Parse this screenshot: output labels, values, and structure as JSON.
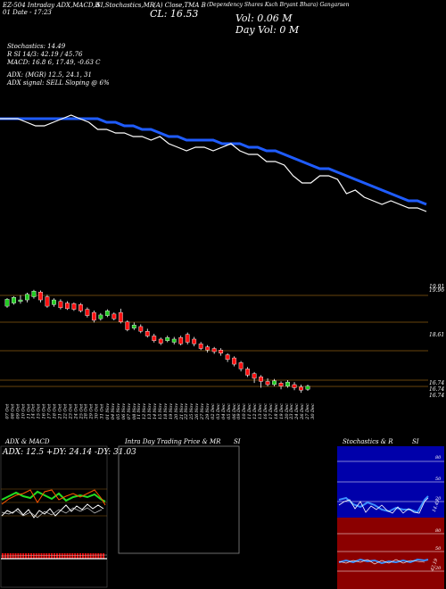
{
  "header": {
    "ticker_line": "EZ-504 Intraday ADX,MACD,B",
    "company": "(Dependency Shares Ksch Bryant Bhara) Gangarsen",
    "sub_left": "01 Date - 17:23",
    "close_label": "CL: 16.53",
    "vol_label": "Vol: 0.06   M",
    "dayvol_label": "Day Vol: 0   M",
    "stoch_title": "SI,Stochastics,MR",
    "close_line_title": "(A) Close,TMA B"
  },
  "stats": {
    "stoch": "Stochastics: 14.49",
    "r": "R                SI 14/3: 42.19 / 45.76",
    "macd": "MACD: 16.8          6, 17.49, -0.63  C",
    "adx": "ADX:                (MGR) 12.5,  24.1,  31",
    "adx_signal": "ADX  signal: SELL  Sloping @ 6%"
  },
  "price_axis": {
    "top_labels": [
      "19.91",
      "19.96"
    ],
    "mid_label": "18.61",
    "low_labels": [
      "16.74",
      "16.74",
      "16.74"
    ]
  },
  "date_labels": [
    "07 Oct",
    "08 Oct",
    "09 Oct",
    "10 Oct",
    "11 Oct",
    "14 Oct",
    "15 Oct",
    "16 Oct",
    "17 Oct",
    "18 Oct",
    "21 Oct",
    "22 Oct",
    "23 Oct",
    "24 Oct",
    "25 Oct",
    "28 Oct",
    "29 Oct",
    "30 Oct",
    "31 Oct",
    "01 Nov",
    "04 Nov",
    "05 Nov",
    "06 Nov",
    "07 Nov",
    "08 Nov",
    "11 Nov",
    "12 Nov",
    "13 Nov",
    "14 Nov",
    "15 Nov",
    "18 Nov",
    "19 Nov",
    "20 Nov",
    "21 Nov",
    "22 Nov",
    "25 Nov",
    "26 Nov",
    "27 Nov",
    "29 Nov",
    "02 Dec",
    "03 Dec",
    "04 Dec",
    "05 Dec",
    "06 Dec",
    "09 Dec",
    "10 Dec",
    "11 Dec",
    "12 Dec",
    "13 Dec",
    "16 Dec",
    "17 Dec",
    "18 Dec",
    "19 Dec",
    "20 Dec",
    "23 Dec",
    "24 Dec",
    "26 Dec",
    "27 Dec",
    "30 Dec"
  ],
  "panels": {
    "adx_title": "ADX  & MACD",
    "adx_values": "ADX: 12.5  +DY: 24.14  -DY: 31.03",
    "intraday_title": "Intra  Day Trading Price  & MR",
    "intraday_si": "SI",
    "stoch_title": "Stochastics & R",
    "stoch_si": "SI",
    "stoch_axis_upper": [
      "80",
      "50",
      "20"
    ],
    "stoch_axis_lower": [
      "80",
      "50",
      "20"
    ],
    "stoch_value_upper": "14.49",
    "stoch_value_lower": "42.19"
  },
  "colors": {
    "bull": "#22cc22",
    "bear": "#ff1111",
    "ma": "#1f5cff",
    "price": "#ffffff",
    "grid": "#8a5a10",
    "panel_blue": "#0000aa",
    "panel_red": "#8b0000"
  },
  "chart_data": {
    "type": "line",
    "series": [
      {
        "values": [
          19.8,
          19.8,
          19.8,
          19.7,
          19.6,
          19.6,
          19.7,
          19.8,
          19.9,
          19.8,
          19.7,
          19.5,
          19.5,
          19.4,
          19.4,
          19.3,
          19.3,
          19.2,
          19.3,
          19.1,
          19.0,
          18.9,
          19.0,
          19.0,
          18.9,
          19.0,
          19.1,
          18.9,
          18.8,
          18.8,
          18.6,
          18.6,
          18.5,
          18.2,
          18.0,
          18.0,
          18.2,
          18.2,
          18.1,
          17.7,
          17.8,
          17.6,
          17.5,
          17.4,
          17.5,
          17.4,
          17.3,
          17.3,
          17.2
        ]
      },
      {
        "values": [
          19.8,
          19.8,
          19.8,
          19.8,
          19.8,
          19.8,
          19.8,
          19.8,
          19.8,
          19.8,
          19.8,
          19.8,
          19.7,
          19.7,
          19.6,
          19.6,
          19.5,
          19.5,
          19.4,
          19.3,
          19.3,
          19.2,
          19.2,
          19.2,
          19.2,
          19.1,
          19.1,
          19.1,
          19.0,
          19.0,
          18.9,
          18.9,
          18.8,
          18.7,
          18.6,
          18.5,
          18.4,
          18.4,
          18.3,
          18.2,
          18.1,
          18.0,
          17.9,
          17.8,
          17.7,
          17.6,
          17.5,
          17.5,
          17.4
        ]
      }
    ],
    "candles": [
      {
        "o": 19.5,
        "c": 19.72,
        "h": 19.76,
        "l": 19.45
      },
      {
        "o": 19.6,
        "c": 19.78,
        "h": 19.82,
        "l": 19.55
      },
      {
        "o": 19.65,
        "c": 19.7,
        "h": 19.85,
        "l": 19.58
      },
      {
        "o": 19.7,
        "c": 19.88,
        "h": 19.93,
        "l": 19.62
      },
      {
        "o": 19.8,
        "c": 19.98,
        "h": 20.02,
        "l": 19.74
      },
      {
        "o": 19.95,
        "c": 19.7,
        "h": 20.0,
        "l": 19.62
      },
      {
        "o": 19.8,
        "c": 19.5,
        "h": 19.86,
        "l": 19.45
      },
      {
        "o": 19.55,
        "c": 19.7,
        "h": 19.75,
        "l": 19.48
      },
      {
        "o": 19.65,
        "c": 19.45,
        "h": 19.72,
        "l": 19.4
      },
      {
        "o": 19.6,
        "c": 19.42,
        "h": 19.66,
        "l": 19.38
      },
      {
        "o": 19.58,
        "c": 19.4,
        "h": 19.62,
        "l": 19.35
      },
      {
        "o": 19.55,
        "c": 19.35,
        "h": 19.6,
        "l": 19.3
      },
      {
        "o": 19.4,
        "c": 19.2,
        "h": 19.46,
        "l": 19.14
      },
      {
        "o": 19.3,
        "c": 19.05,
        "h": 19.36,
        "l": 18.98
      },
      {
        "o": 19.1,
        "c": 19.22,
        "h": 19.28,
        "l": 19.04
      },
      {
        "o": 19.2,
        "c": 19.35,
        "h": 19.4,
        "l": 19.15
      },
      {
        "o": 19.25,
        "c": 19.1,
        "h": 19.3,
        "l": 19.05
      },
      {
        "o": 19.3,
        "c": 19.0,
        "h": 19.42,
        "l": 18.95
      },
      {
        "o": 19.0,
        "c": 18.75,
        "h": 19.05,
        "l": 18.7
      },
      {
        "o": 18.8,
        "c": 18.9,
        "h": 18.98,
        "l": 18.74
      },
      {
        "o": 18.85,
        "c": 18.7,
        "h": 18.92,
        "l": 18.64
      },
      {
        "o": 18.7,
        "c": 18.55,
        "h": 18.78,
        "l": 18.5
      },
      {
        "o": 18.55,
        "c": 18.4,
        "h": 18.62,
        "l": 18.34
      },
      {
        "o": 18.45,
        "c": 18.32,
        "h": 18.5,
        "l": 18.26
      },
      {
        "o": 18.4,
        "c": 18.5,
        "h": 18.56,
        "l": 18.35
      },
      {
        "o": 18.35,
        "c": 18.45,
        "h": 18.52,
        "l": 18.28
      },
      {
        "o": 18.5,
        "c": 18.3,
        "h": 18.56,
        "l": 18.25
      },
      {
        "o": 18.6,
        "c": 18.35,
        "h": 18.66,
        "l": 18.28
      },
      {
        "o": 18.45,
        "c": 18.3,
        "h": 18.52,
        "l": 18.22
      },
      {
        "o": 18.3,
        "c": 18.15,
        "h": 18.36,
        "l": 18.1
      },
      {
        "o": 18.2,
        "c": 18.1,
        "h": 18.26,
        "l": 18.02
      },
      {
        "o": 18.15,
        "c": 18.05,
        "h": 18.2,
        "l": 17.98
      },
      {
        "o": 18.1,
        "c": 18.0,
        "h": 18.16,
        "l": 17.92
      },
      {
        "o": 17.95,
        "c": 17.8,
        "h": 18.0,
        "l": 17.72
      },
      {
        "o": 17.85,
        "c": 17.65,
        "h": 17.9,
        "l": 17.58
      },
      {
        "o": 17.7,
        "c": 17.5,
        "h": 17.75,
        "l": 17.42
      },
      {
        "o": 17.5,
        "c": 17.3,
        "h": 17.56,
        "l": 17.24
      },
      {
        "o": 17.35,
        "c": 17.2,
        "h": 17.4,
        "l": 17.05
      },
      {
        "o": 17.25,
        "c": 17.1,
        "h": 17.3,
        "l": 16.9
      },
      {
        "o": 17.1,
        "c": 17.0,
        "h": 17.2,
        "l": 16.95
      },
      {
        "o": 17.0,
        "c": 17.12,
        "h": 17.18,
        "l": 16.95
      },
      {
        "o": 17.05,
        "c": 16.95,
        "h": 17.1,
        "l": 16.85
      },
      {
        "o": 16.95,
        "c": 17.08,
        "h": 17.14,
        "l": 16.9
      },
      {
        "o": 17.0,
        "c": 16.9,
        "h": 17.08,
        "l": 16.82
      },
      {
        "o": 16.92,
        "c": 16.82,
        "h": 17.0,
        "l": 16.74
      },
      {
        "o": 16.85,
        "c": 16.95,
        "h": 17.0,
        "l": 16.8
      }
    ],
    "ylim": [
      16.6,
      20.1
    ]
  }
}
